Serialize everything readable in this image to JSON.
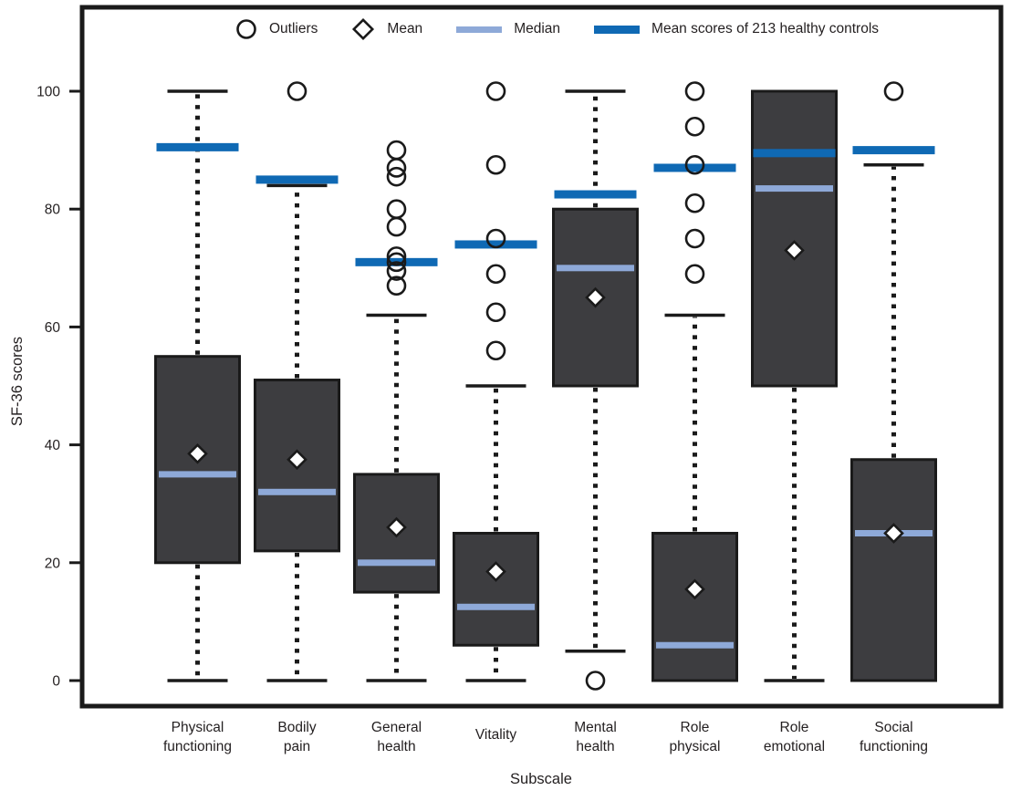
{
  "legend": {
    "outliers": "Outliers",
    "mean": "Mean",
    "median": "Median",
    "healthy": "Mean scores of 213 healthy controls"
  },
  "colors": {
    "frame": "#1a1a1a",
    "text": "#231f20",
    "box_fill": "#3d3d40",
    "median_line": "#8ea9d8",
    "healthy_line": "#0f69b4",
    "marker_fill": "#ffffff"
  },
  "chart_data": {
    "type": "box",
    "title": "",
    "xlabel": "Subscale",
    "ylabel": "SF-36 scores",
    "ylim": [
      -4,
      114
    ],
    "yticks": [
      0,
      20,
      40,
      60,
      80,
      100
    ],
    "grid": false,
    "legend_position": "top-inside",
    "legend_entries": [
      "Outliers",
      "Mean",
      "Median",
      "Mean scores of 213 healthy controls"
    ],
    "categories": [
      "Physical functioning",
      "Bodily pain",
      "General health",
      "Vitality",
      "Mental health",
      "Role physical",
      "Role emotional",
      "Social functioning"
    ],
    "series": [
      {
        "label": "Physical functioning",
        "label_lines": [
          "Physical",
          "functioning"
        ],
        "whisker_low": 0,
        "q1": 20,
        "median": 35,
        "q3": 55,
        "whisker_high": 100,
        "mean": 38.5,
        "healthy_mean": 90.5,
        "outliers": []
      },
      {
        "label": "Bodily pain",
        "label_lines": [
          "Bodily",
          "pain"
        ],
        "whisker_low": 0,
        "q1": 22,
        "median": 32,
        "q3": 51,
        "whisker_high": 84,
        "mean": 37.5,
        "healthy_mean": 85,
        "outliers": [
          100
        ]
      },
      {
        "label": "General health",
        "label_lines": [
          "General",
          "health"
        ],
        "whisker_low": 0,
        "q1": 15,
        "median": 20,
        "q3": 35,
        "whisker_high": 62,
        "mean": 26,
        "healthy_mean": 71,
        "outliers": [
          90,
          87,
          85.5,
          80,
          77,
          72,
          71,
          69.5,
          67
        ]
      },
      {
        "label": "Vitality",
        "label_lines": [
          "Vitality"
        ],
        "whisker_low": 0,
        "q1": 6,
        "median": 12.5,
        "q3": 25,
        "whisker_high": 50,
        "mean": 18.5,
        "healthy_mean": 74,
        "outliers": [
          100,
          87.5,
          75,
          69,
          62.5,
          56
        ]
      },
      {
        "label": "Mental health",
        "label_lines": [
          "Mental",
          "health"
        ],
        "whisker_low": 5,
        "q1": 50,
        "median": 70,
        "q3": 80,
        "whisker_high": 100,
        "mean": 65,
        "healthy_mean": 82.5,
        "outliers": [
          0
        ]
      },
      {
        "label": "Role physical",
        "label_lines": [
          "Role",
          "physical"
        ],
        "whisker_low": null,
        "q1": 0,
        "median": 6,
        "q3": 25,
        "whisker_high": 62,
        "mean": 15.5,
        "healthy_mean": 87,
        "outliers": [
          100,
          94,
          87.5,
          81,
          75,
          69
        ]
      },
      {
        "label": "Role emotional",
        "label_lines": [
          "Role",
          "emotional"
        ],
        "whisker_low": 0,
        "q1": 50,
        "median": 83.5,
        "q3": 100,
        "whisker_high": null,
        "mean": 73,
        "healthy_mean": 89.5,
        "outliers": []
      },
      {
        "label": "Social functioning",
        "label_lines": [
          "Social",
          "functioning"
        ],
        "whisker_low": null,
        "q1": 0,
        "median": 25,
        "q3": 37.5,
        "whisker_high": 87.5,
        "mean": 25,
        "healthy_mean": 90,
        "outliers": [
          100
        ]
      }
    ]
  }
}
